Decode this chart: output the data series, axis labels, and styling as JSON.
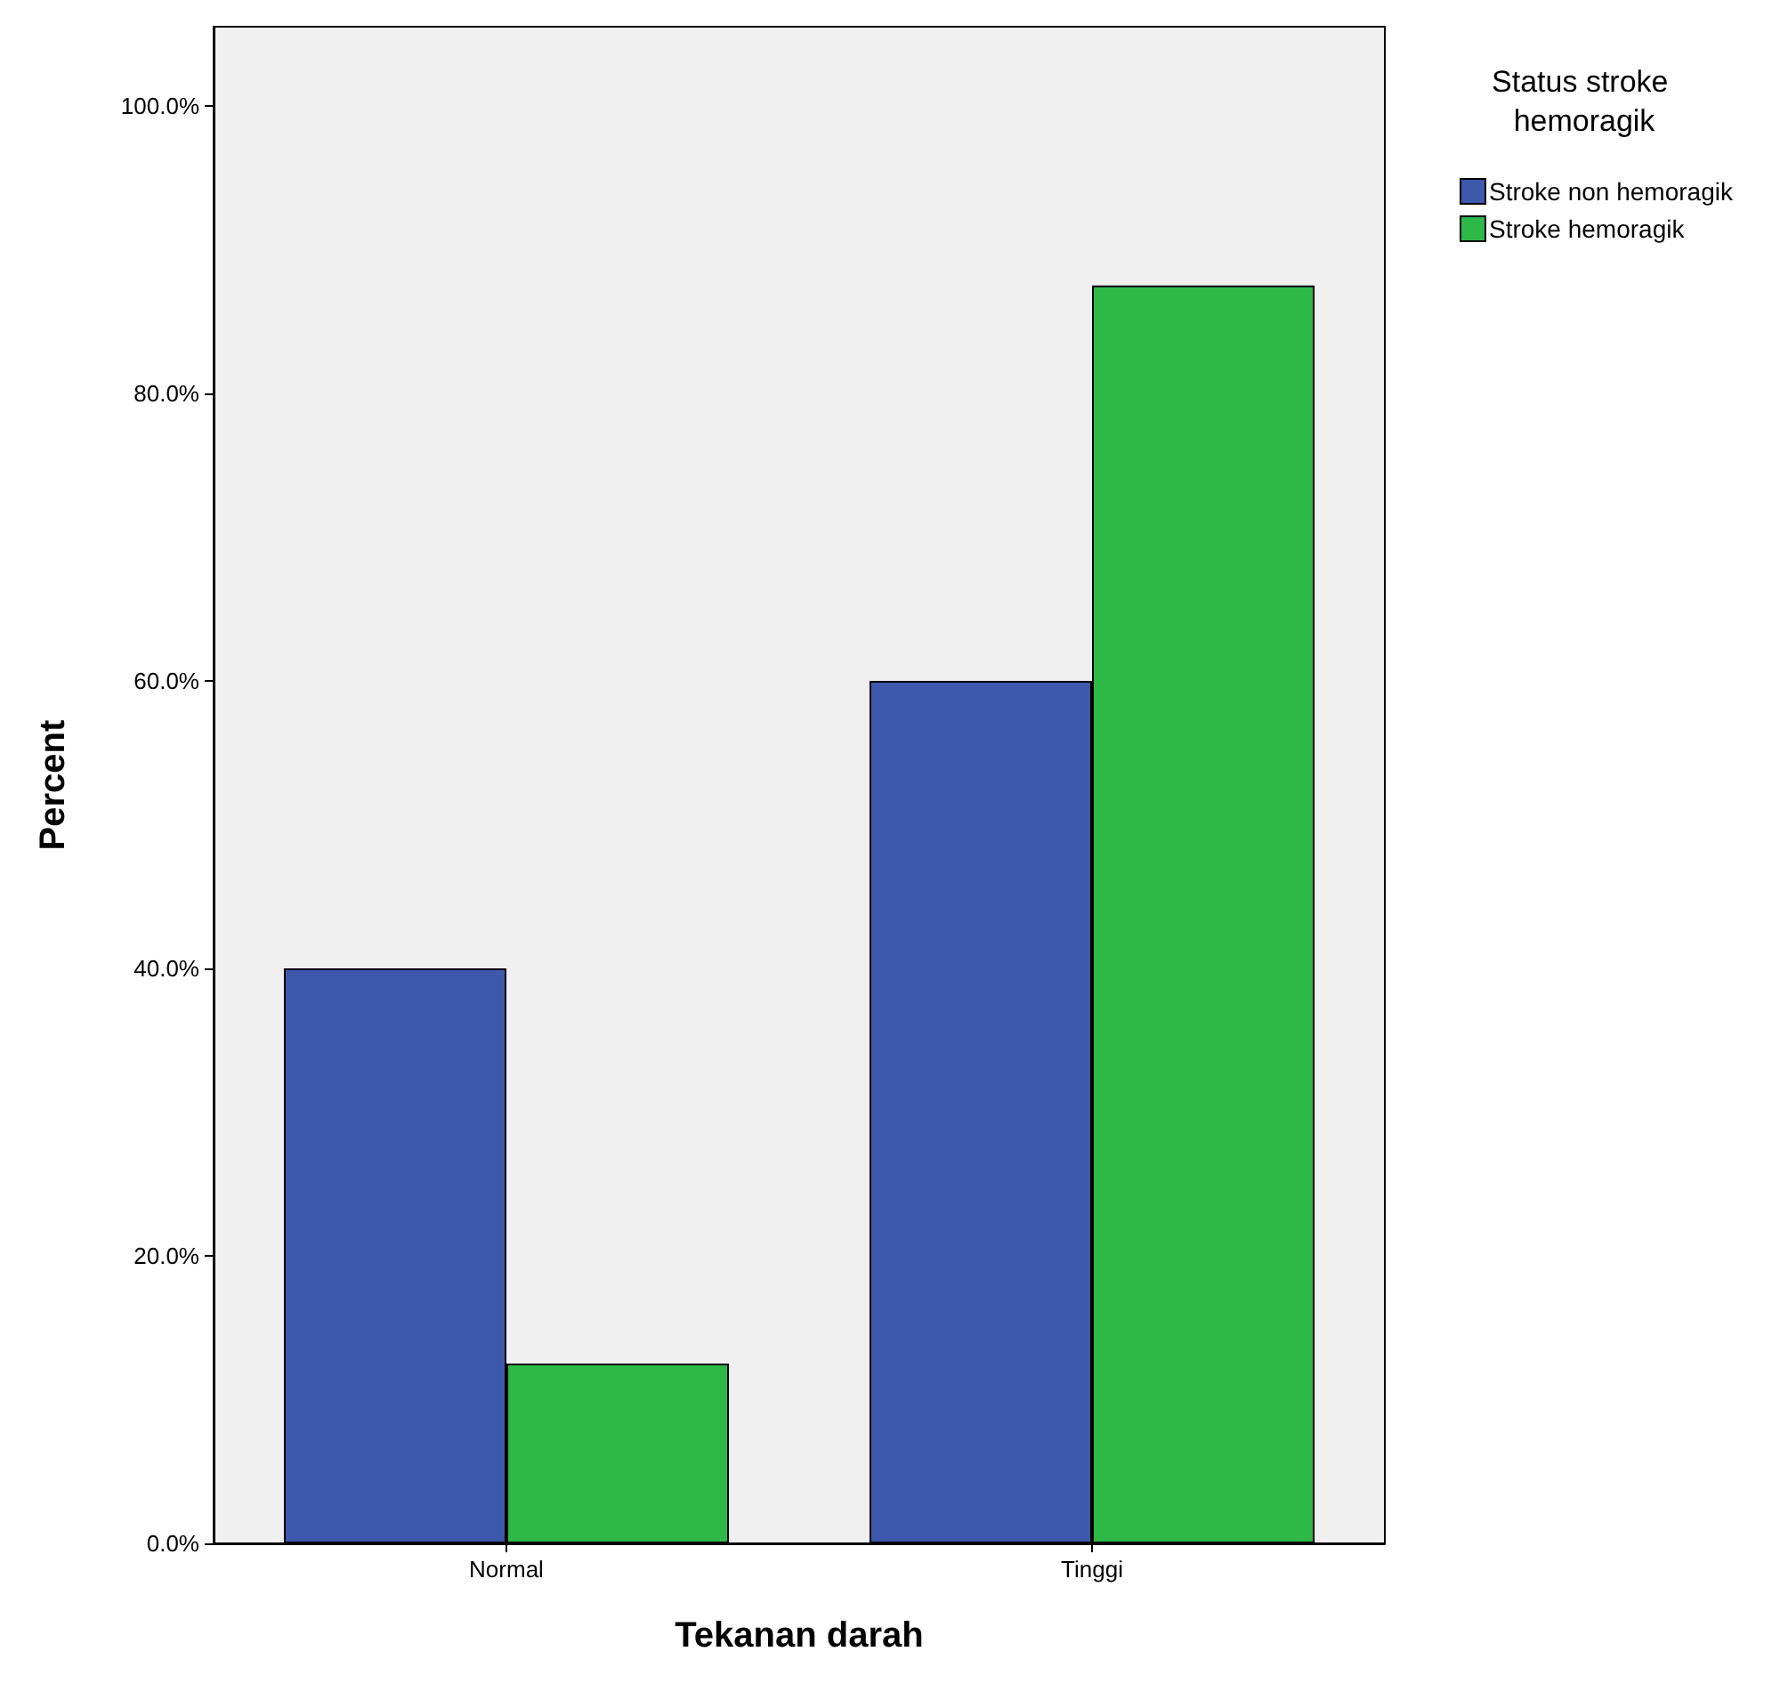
{
  "chart_data": {
    "type": "bar",
    "categories": [
      "Normal",
      "Tinggi"
    ],
    "series": [
      {
        "name": "Stroke non hemoragik",
        "color": "#3e58ac",
        "values": [
          40,
          60
        ]
      },
      {
        "name": "Stroke hemoragik",
        "color": "#2eb847",
        "values": [
          12.5,
          87.5
        ]
      }
    ],
    "xlabel": "Tekanan darah",
    "ylabel": "Percent",
    "legend_title": "Status stroke hemoragik",
    "ylim": [
      0,
      105.5
    ],
    "yticks": [
      {
        "value": 0,
        "label": "0.0%"
      },
      {
        "value": 20,
        "label": "20.0%"
      },
      {
        "value": 40,
        "label": "40.0%"
      },
      {
        "value": 60,
        "label": "60.0%"
      },
      {
        "value": 80,
        "label": "80.0%"
      },
      {
        "value": 100,
        "label": "100.0%"
      }
    ],
    "grid": false,
    "legend": "top right"
  }
}
